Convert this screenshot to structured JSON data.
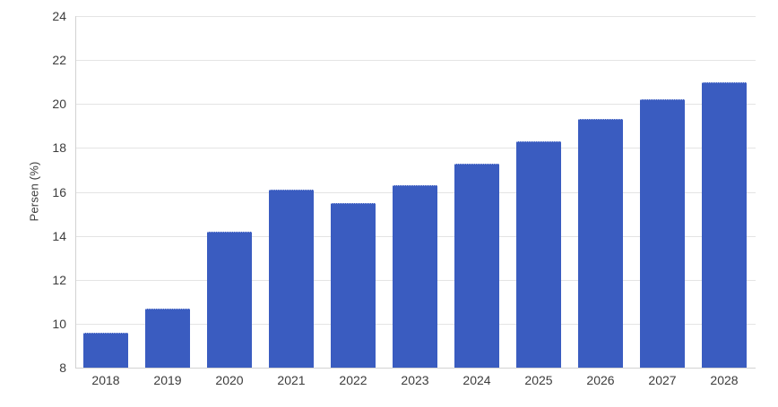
{
  "chart_data": {
    "type": "bar",
    "title": "",
    "xlabel": "",
    "ylabel": "Persen (%)",
    "categories": [
      "2018",
      "2019",
      "2020",
      "2021",
      "2022",
      "2023",
      "2024",
      "2025",
      "2026",
      "2027",
      "2028"
    ],
    "values": [
      9.6,
      10.7,
      14.2,
      16.1,
      15.5,
      16.3,
      17.3,
      18.3,
      19.3,
      20.2,
      21.0
    ],
    "ylim": [
      8,
      24
    ],
    "yticks": [
      8,
      10,
      12,
      14,
      16,
      18,
      20,
      22,
      24
    ],
    "grid": true,
    "legend": "none"
  },
  "colors": {
    "bar": "#3a5cc0",
    "gridline": "#e4e4e4",
    "axis_line": "#d2d2d2",
    "tick_text": "#3c3c3c"
  }
}
